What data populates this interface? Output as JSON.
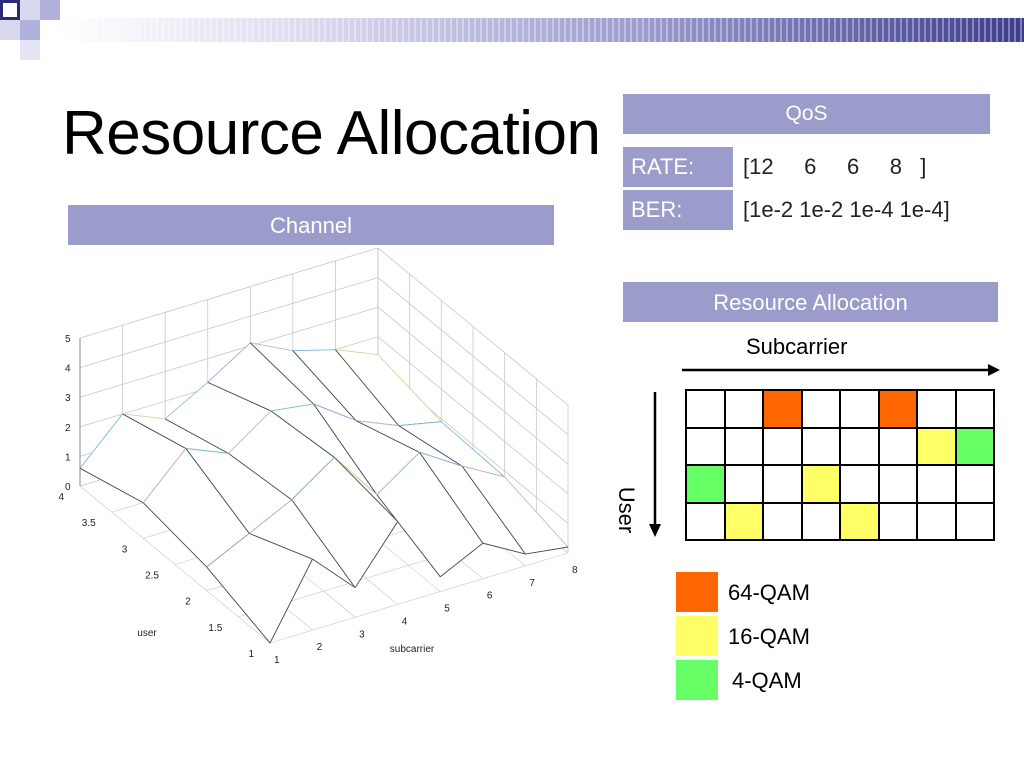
{
  "slide": {
    "title": "Resource Allocation"
  },
  "channel": {
    "header": "Channel",
    "chart_data": {
      "type": "surface",
      "xlabel": "subcarrier",
      "ylabel": "user",
      "x_ticks": [
        "1",
        "2",
        "3",
        "4",
        "5",
        "6",
        "7",
        "8"
      ],
      "y_ticks": [
        "1",
        "1.5",
        "2",
        "2.5",
        "3",
        "3.5",
        "4"
      ],
      "z_ticks": [
        "0",
        "1",
        "2",
        "3",
        "4",
        "5"
      ],
      "xlim": [
        1,
        8
      ],
      "ylim": [
        1,
        4
      ],
      "zlim": [
        0,
        5
      ],
      "grid": true,
      "z": [
        [
          0.0,
          2.4,
          1.0,
          2.8,
          0.5,
          1.2,
          0.4,
          0.2
        ],
        [
          0.8,
          1.5,
          2.2,
          3.2,
          1.5,
          2.5,
          1.6,
          0.8
        ],
        [
          1.2,
          2.6,
          2.0,
          3.0,
          2.8,
          1.8,
          1.2,
          0.9
        ],
        [
          0.6,
          2.0,
          1.4,
          2.2,
          3.1,
          2.4,
          2.0,
          1.4
        ]
      ],
      "colors": {
        "mesh": "#ffffff",
        "edge": "#444444",
        "grid": "#c8c8c8"
      }
    }
  },
  "qos": {
    "header": "QoS",
    "rate_label": "RATE:",
    "rate_value": "[12     6     6     8   ]",
    "ber_label": "BER:",
    "ber_value": "[1e-2 1e-2 1e-4 1e-4]"
  },
  "allocation": {
    "header": "Resource Allocation",
    "subcarrier_label": "Subcarrier",
    "user_label": "User",
    "grid": [
      [
        "none",
        "none",
        "64-QAM",
        "none",
        "none",
        "64-QAM",
        "none",
        "none"
      ],
      [
        "none",
        "none",
        "none",
        "none",
        "none",
        "none",
        "16-QAM",
        "4-QAM"
      ],
      [
        "4-QAM",
        "none",
        "none",
        "16-QAM",
        "none",
        "none",
        "none",
        "none"
      ],
      [
        "none",
        "16-QAM",
        "none",
        "none",
        "16-QAM",
        "none",
        "none",
        "none"
      ]
    ],
    "legend": [
      {
        "label": "64-QAM",
        "color": "#ff6600"
      },
      {
        "label": "16-QAM",
        "color": "#ffff66"
      },
      {
        "label": "4-QAM",
        "color": "#66ff66"
      }
    ]
  },
  "theme": {
    "header_bg": "#9c9ccc",
    "empty_cell": "#ffffff"
  }
}
